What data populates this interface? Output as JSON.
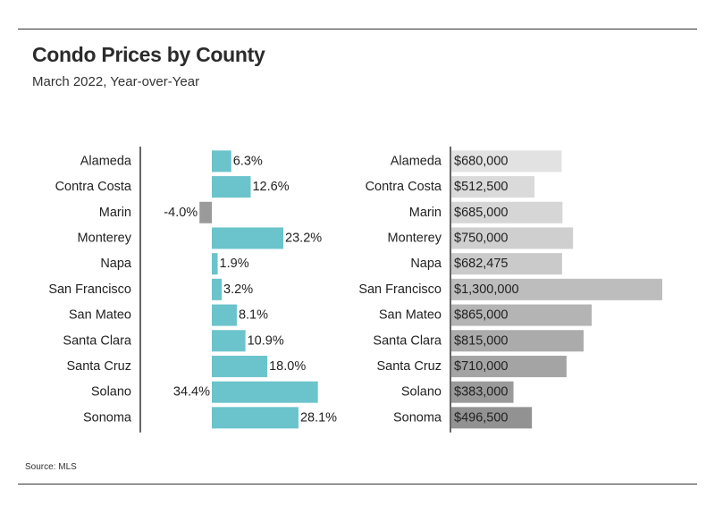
{
  "header": {
    "title": "Condo Prices by County",
    "subtitle": "March 2022, Year-over-Year"
  },
  "footer": {
    "source": "Source:  MLS"
  },
  "colors": {
    "positive_bar": "#6bc3cb",
    "negative_bar": "#9a9a9a",
    "axis": "#333333",
    "price_bars": [
      "#e2e2e2",
      "#dadada",
      "#d6d6d6",
      "#cfcfcf",
      "#cacaca",
      "#bdbdbd",
      "#b4b4b4",
      "#ababab",
      "#a4a4a4",
      "#9a9a9a",
      "#929292"
    ]
  },
  "chart_data": [
    {
      "type": "bar",
      "orientation": "horizontal",
      "categories": [
        "Alameda",
        "Contra Costa",
        "Marin",
        "Monterey",
        "Napa",
        "San Francisco",
        "San Mateo",
        "Santa Clara",
        "Santa Cruz",
        "Solano",
        "Sonoma"
      ],
      "values": [
        6.3,
        12.6,
        -4.0,
        23.2,
        1.9,
        3.2,
        8.1,
        10.9,
        18.0,
        34.4,
        28.1
      ],
      "value_labels": [
        "6.3%",
        "12.6%",
        "-4.0%",
        "23.2%",
        "1.9%",
        "3.2%",
        "8.1%",
        "10.9%",
        "18.0%",
        "34.4%",
        "28.1%"
      ],
      "unit": "%"
    },
    {
      "type": "bar",
      "orientation": "horizontal",
      "categories": [
        "Alameda",
        "Contra Costa",
        "Marin",
        "Monterey",
        "Napa",
        "San Francisco",
        "San Mateo",
        "Santa Clara",
        "Santa Cruz",
        "Solano",
        "Sonoma"
      ],
      "values": [
        680000,
        512500,
        685000,
        750000,
        682475,
        1300000,
        865000,
        815000,
        710000,
        383000,
        496500
      ],
      "value_labels": [
        "$680,000",
        "$512,500",
        "$685,000",
        "$750,000",
        "$682,475",
        "$1,300,000",
        "$865,000",
        "$815,000",
        "$710,000",
        "$383,000",
        "$496,500"
      ],
      "unit": "$"
    }
  ]
}
